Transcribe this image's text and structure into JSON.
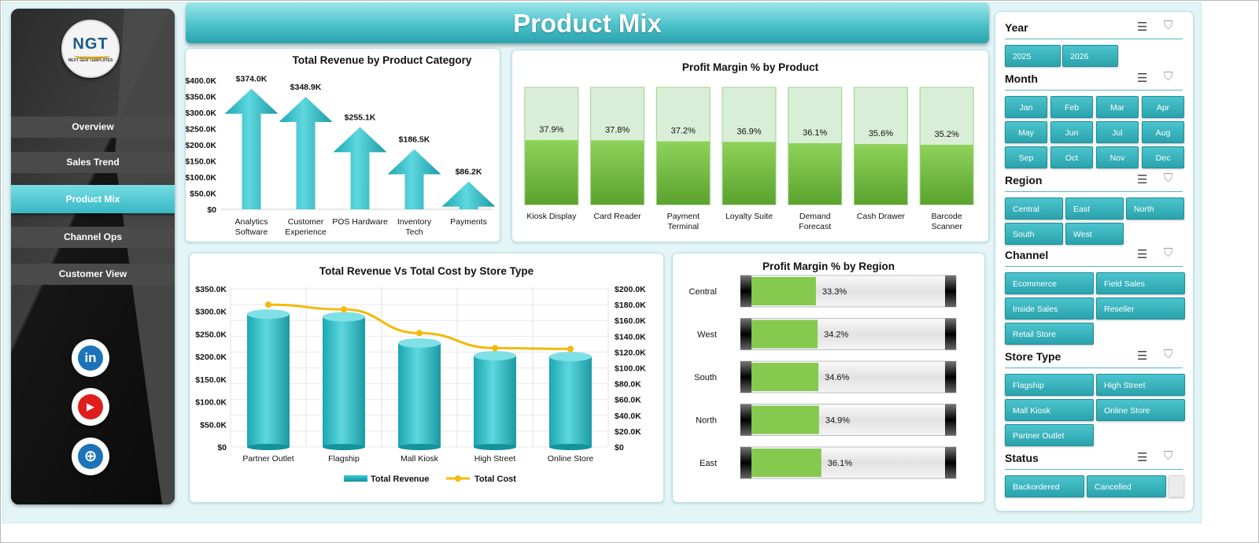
{
  "title": "Product Mix",
  "logo": {
    "mark": "NGT",
    "tagline": "NEXT GEN TEMPLATES"
  },
  "nav": [
    {
      "label": "Overview"
    },
    {
      "label": "Sales Trend"
    },
    {
      "label": "Product Mix",
      "active": true
    },
    {
      "label": "Channel Ops"
    },
    {
      "label": "Customer View"
    }
  ],
  "social": [
    {
      "icon": "linkedin-icon",
      "glyph": "in",
      "color": "#1d73b8"
    },
    {
      "icon": "youtube-icon",
      "glyph": "▶",
      "color": "#e01d1d"
    },
    {
      "icon": "globe-icon",
      "glyph": "⊕",
      "color": "#1d73b8"
    }
  ],
  "colors": {
    "accent": "#2fb3bd",
    "accent_light": "#7de0e6",
    "green": "#7cc242",
    "green_light": "#d9efd6",
    "line": "#f4b90b"
  },
  "charts": {
    "revenue_by_category": {
      "type": "bar",
      "title": "Total Revenue  by Product Category",
      "categories": [
        "Analytics Software",
        "Customer Experience",
        "POS Hardware",
        "Inventory Tech",
        "Payments"
      ],
      "values": [
        374.0,
        348.9,
        255.1,
        186.5,
        86.2
      ],
      "value_labels": [
        "$374.0K",
        "$348.9K",
        "$255.1K",
        "$186.5K",
        "$86.2K"
      ],
      "yticks": [
        "$0",
        "$50.0K",
        "$100.0K",
        "$150.0K",
        "$200.0K",
        "$250.0K",
        "$300.0K",
        "$350.0K",
        "$400.0K"
      ],
      "ylim": [
        0,
        400
      ]
    },
    "margin_by_product": {
      "type": "bar",
      "title": "Profit Margin % by Product",
      "categories": [
        "Kiosk Display",
        "Card Reader",
        "Payment Terminal",
        "Loyalty Suite",
        "Demand Forecast",
        "Cash Drawer",
        "Barcode Scanner"
      ],
      "values": [
        37.9,
        37.8,
        37.2,
        36.9,
        36.1,
        35.6,
        35.2
      ],
      "value_labels": [
        "37.9%",
        "37.8%",
        "37.2%",
        "36.9%",
        "36.1%",
        "35.6%",
        "35.2%"
      ],
      "ylim": [
        0,
        100
      ]
    },
    "revenue_vs_cost": {
      "type": "bar",
      "title": "Total Revenue  Vs Total Cost by Store Type",
      "categories": [
        "Partner Outlet",
        "Flagship",
        "Mall Kiosk",
        "High Street",
        "Online Store"
      ],
      "series": [
        {
          "name": "Total Revenue",
          "values": [
            294,
            288,
            230,
            202,
            200
          ]
        },
        {
          "name": "Total Cost",
          "values": [
            180,
            174,
            144,
            125,
            124
          ]
        }
      ],
      "yticks_left": [
        "$0",
        "$50.0K",
        "$100.0K",
        "$150.0K",
        "$200.0K",
        "$250.0K",
        "$300.0K",
        "$350.0K"
      ],
      "yticks_right": [
        "$0",
        "$20.0K",
        "$40.0K",
        "$60.0K",
        "$80.0K",
        "$100.0K",
        "$120.0K",
        "$140.0K",
        "$160.0K",
        "$180.0K",
        "$200.0K"
      ],
      "ylim_left": [
        0,
        350
      ],
      "ylim_right": [
        0,
        200
      ],
      "legend": [
        "Total Revenue",
        "Total Cost"
      ]
    },
    "margin_by_region": {
      "type": "bar",
      "title": "Profit Margin % by Region",
      "categories": [
        "Central",
        "West",
        "South",
        "North",
        "East"
      ],
      "values": [
        33.3,
        34.2,
        34.6,
        34.9,
        36.1
      ],
      "value_labels": [
        "33.3%",
        "34.2%",
        "34.6%",
        "34.9%",
        "36.1%"
      ],
      "xlim": [
        0,
        100
      ]
    }
  },
  "slicers": [
    {
      "title": "Year",
      "items": [
        "2025",
        "2026"
      ]
    },
    {
      "title": "Month",
      "items": [
        "Jan",
        "Feb",
        "Mar",
        "Apr",
        "May",
        "Jun",
        "Jul",
        "Aug",
        "Sep",
        "Oct",
        "Nov",
        "Dec"
      ]
    },
    {
      "title": "Region",
      "items": [
        "Central",
        "East",
        "North",
        "South",
        "West"
      ]
    },
    {
      "title": "Channel",
      "items": [
        "Ecommerce",
        "Field Sales",
        "Inside Sales",
        "Reseller",
        "Retail Store"
      ]
    },
    {
      "title": "Store Type",
      "items": [
        "Flagship",
        "High Street",
        "Mall Kiosk",
        "Online Store",
        "Partner Outlet"
      ]
    },
    {
      "title": "Status",
      "items": [
        "Backordered",
        "Cancelled"
      ]
    }
  ]
}
